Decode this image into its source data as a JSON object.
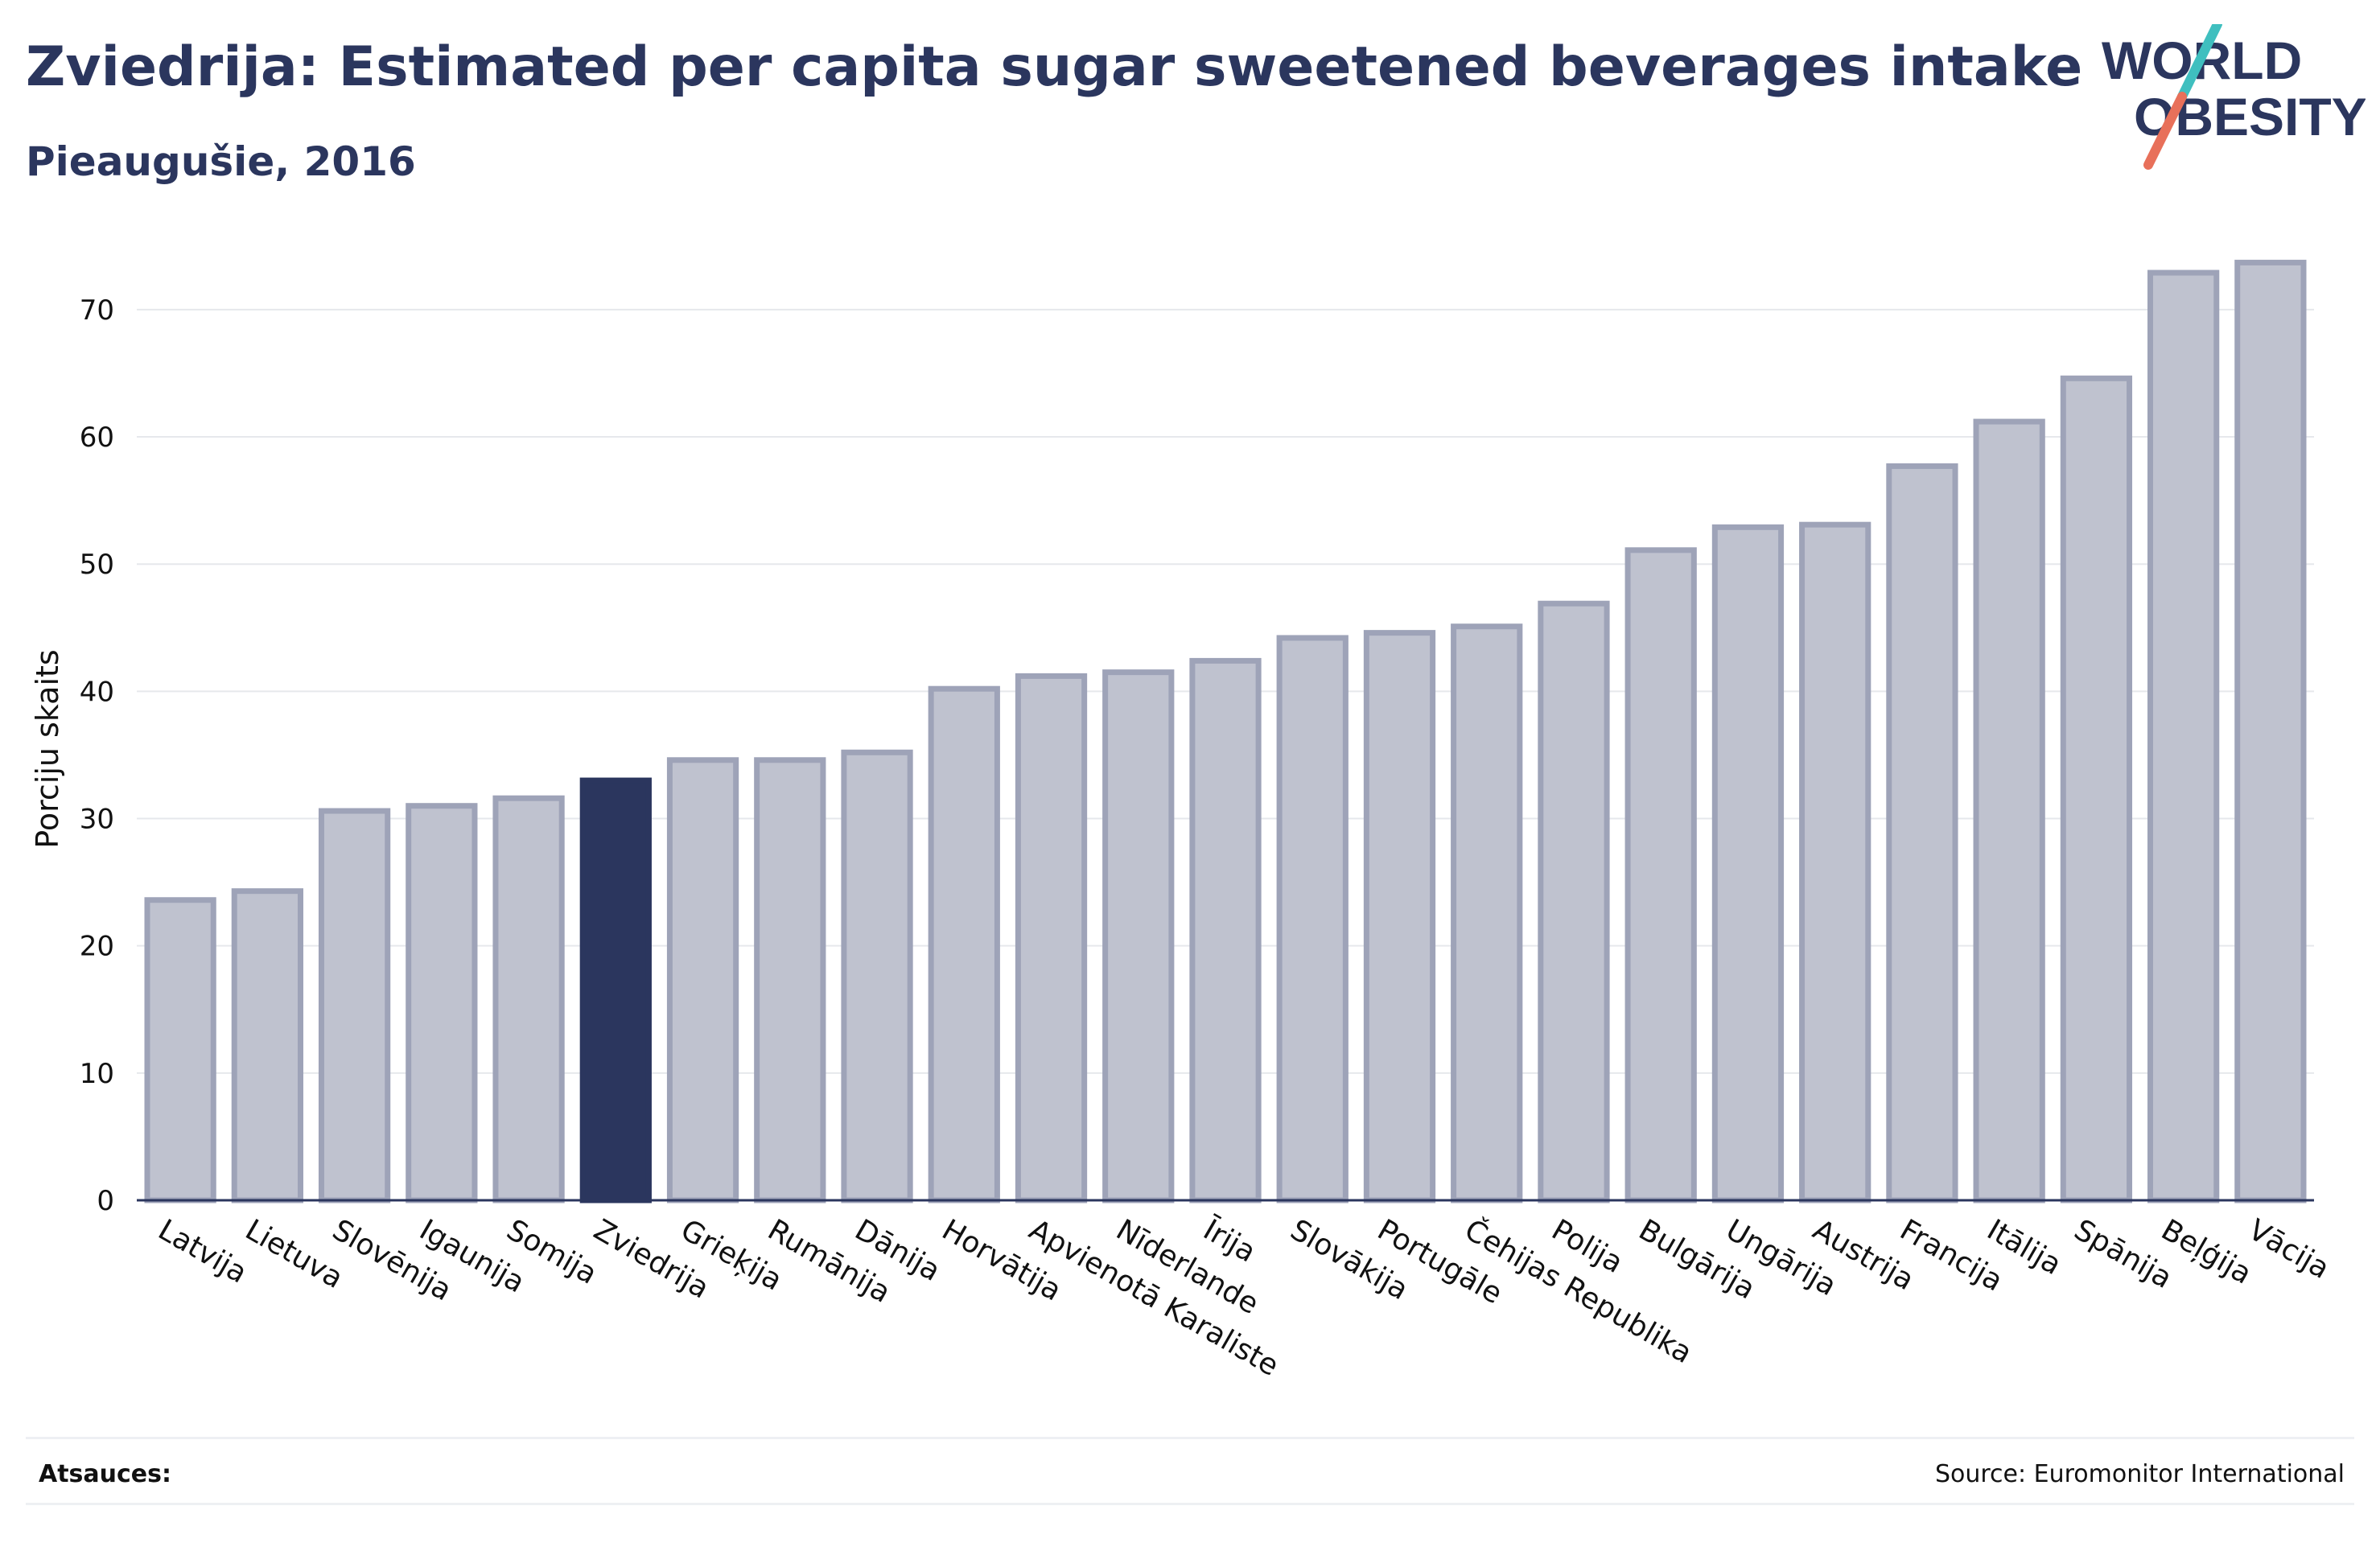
{
  "title": "Zviedrija: Estimated per capita sugar sweetened beverages intake",
  "subtitle": "Pieaugušie, 2016",
  "logo": {
    "line1": "WORLD",
    "line2": "OBESITY",
    "colors": {
      "text": "#2b365e",
      "stroke_top": "#3fbfbf",
      "stroke_bottom": "#e8705a"
    }
  },
  "footer": {
    "refs_label": "Atsauces:",
    "source": "Source: Euromonitor International"
  },
  "colors": {
    "bar": "#bfc2cf",
    "bar_stroke": "#9ea3b8",
    "highlight": "#2b365e",
    "grid": "#e6e8ec",
    "axis": "#2b365e"
  },
  "chart_data": {
    "type": "bar",
    "ylabel": "Porciju skaits",
    "ylim": [
      0,
      76
    ],
    "yticks": [
      0,
      10,
      20,
      30,
      40,
      50,
      60,
      70
    ],
    "grid": true,
    "highlight": "Zviedrija",
    "categories": [
      "Latvija",
      "Lietuva",
      "Slovēnija",
      "Igaunija",
      "Somija",
      "Zviedrija",
      "Grieķija",
      "Rumānija",
      "Dānija",
      "Horvātija",
      "Apvienotā Karaliste",
      "Nīderlande",
      "Īrija",
      "Slovākija",
      "Portugāle",
      "Čehijas Republika",
      "Polija",
      "Bulgārija",
      "Ungārija",
      "Austrija",
      "Francija",
      "Itālija",
      "Spānija",
      "Beļģija",
      "Vācija"
    ],
    "values": [
      23.6,
      24.3,
      30.6,
      31.0,
      31.6,
      33.0,
      34.6,
      34.6,
      35.2,
      40.2,
      41.2,
      41.5,
      42.4,
      44.2,
      44.6,
      45.1,
      46.9,
      51.1,
      52.9,
      53.1,
      57.7,
      61.2,
      64.6,
      72.9,
      73.7
    ]
  }
}
